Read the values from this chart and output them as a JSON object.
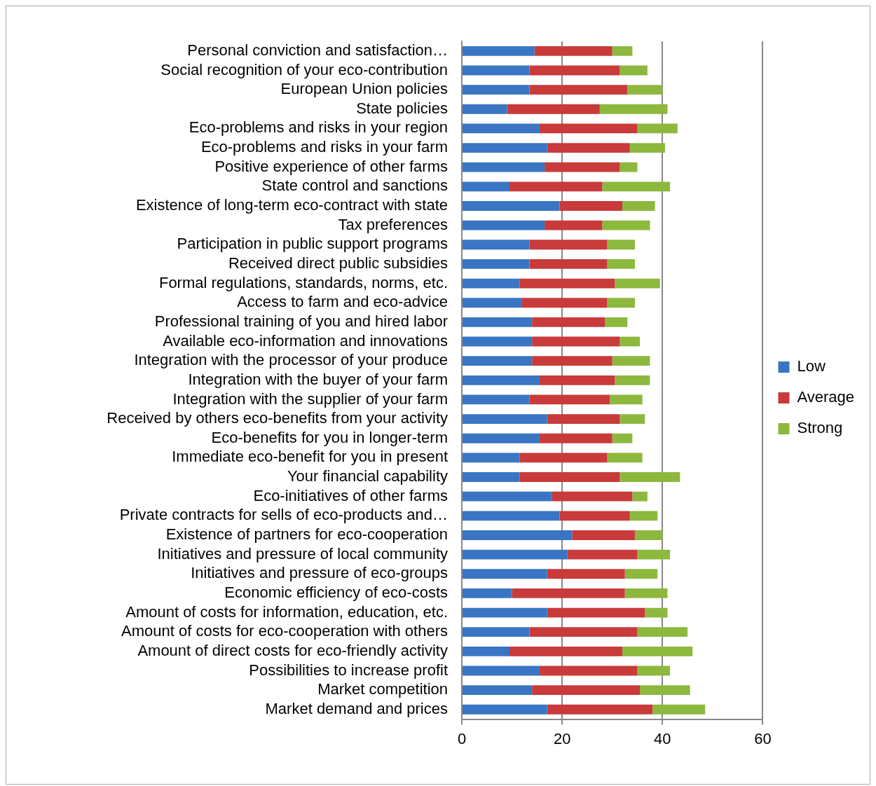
{
  "chart_data": {
    "type": "bar",
    "orientation": "horizontal",
    "stacked": true,
    "categories": [
      "Personal conviction and satisfaction…",
      "Social recognition of your eco-contribution",
      "European Union policies",
      "State policies",
      "Eco-problems and risks in your region",
      "Eco-problems and risks in your farm",
      "Positive experience of other farms",
      "State control and sanctions",
      "Existence of long-term eco-contract with state",
      "Tax preferences",
      "Participation in public support programs",
      "Received direct public subsidies",
      "Formal regulations, standards, norms, etc.",
      "Access to farm and eco-advice",
      "Professional training of you and hired labor",
      "Available eco-information and innovations",
      "Integration with the processor of your produce",
      "Integration with the buyer of your farm",
      "Integration with the supplier of your farm",
      "Received by others eco-benefits from your activity",
      "Eco-benefits for you in longer-term",
      "Immediate eco-benefit for you in present",
      "Your financial capability",
      "Eco-initiatives of other farms",
      "Private contracts for sells of eco-products and…",
      "Existence of partners for eco-cooperation",
      "Initiatives and pressure of local community",
      "Initiatives and pressure of eco-groups",
      "Economic efficiency of eco-costs",
      "Amount of costs for information, education, etc.",
      "Amount of costs for eco-cooperation with others",
      "Amount of direct costs for eco-friendly activity",
      "Possibilities to increase profit",
      "Market competition",
      "Market demand and prices"
    ],
    "series": [
      {
        "name": "Low",
        "color": "#3a75c4",
        "values": [
          14.5,
          13.5,
          13.5,
          9,
          15.5,
          17,
          16.5,
          9.5,
          19.5,
          16.5,
          13.5,
          13.5,
          11.5,
          12,
          14,
          14,
          14,
          15.5,
          13.5,
          17,
          15.5,
          11.5,
          11.5,
          18,
          19.5,
          22,
          21,
          17,
          10,
          17,
          13.5,
          9.5,
          15.5,
          14,
          17
        ]
      },
      {
        "name": "Average",
        "color": "#c93a3a",
        "values": [
          15.5,
          18,
          19.5,
          18.5,
          19.5,
          16.5,
          15,
          18.5,
          12.5,
          11.5,
          15.5,
          15.5,
          19,
          17,
          14.5,
          17.5,
          16,
          15,
          16,
          14.5,
          14.5,
          17.5,
          20,
          16,
          14,
          12.5,
          14,
          15.5,
          22.5,
          19.5,
          21.5,
          22.5,
          19.5,
          21.5,
          21
        ]
      },
      {
        "name": "Strong",
        "color": "#8db83e",
        "values": [
          4,
          5.5,
          7,
          13.5,
          8,
          7,
          3.5,
          13.5,
          6.5,
          9.5,
          5.5,
          5.5,
          9,
          5.5,
          4.5,
          4,
          7.5,
          7,
          6.5,
          5,
          4,
          7,
          12,
          3,
          5.5,
          5.5,
          6.5,
          6.5,
          8.5,
          4.5,
          10,
          14,
          6.5,
          10,
          10.5
        ]
      }
    ],
    "xlim": [
      0,
      60
    ],
    "xticks": [
      0,
      20,
      40,
      60
    ],
    "grid": "x",
    "legend": "right"
  }
}
